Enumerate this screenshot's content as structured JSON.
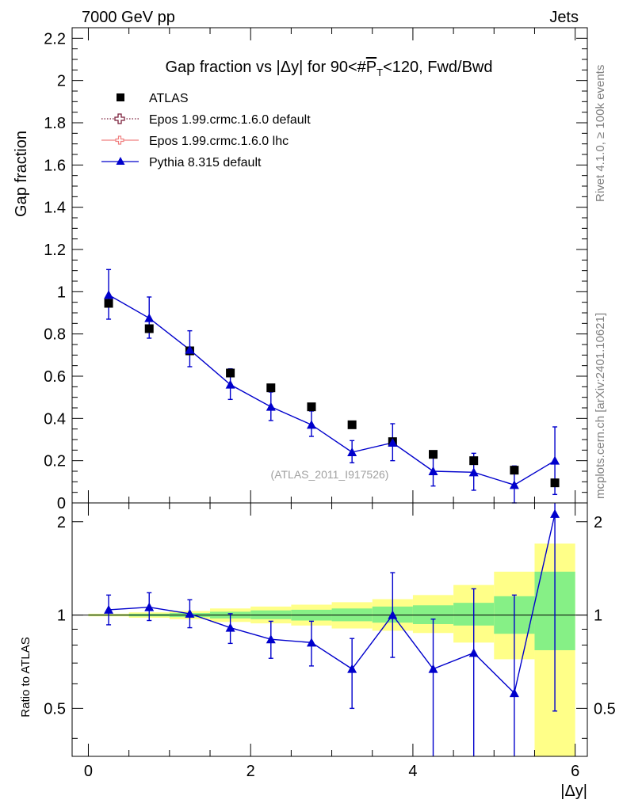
{
  "header": {
    "left_label": "7000 GeV pp",
    "right_label": "Jets",
    "side_label_top": "Rivet 4.1.0, ≥ 100k events",
    "side_label_bottom": "mcplots.cern.ch [arXiv:2401.10621]"
  },
  "chart_data": [
    {
      "type": "scatter",
      "title": "Gap fraction vs |Δy| for 90<#P̅T<120, Fwd/Bwd",
      "title_parts": {
        "pre": "Gap fraction vs |Δy| for 90<#",
        "p": "P",
        "sub": "T",
        "post": "<120, Fwd/Bwd"
      },
      "ylabel": "Gap fraction",
      "xlabel": "|Δy|",
      "watermark": "(ATLAS_2011_I917526)",
      "xlim": [
        -0.2,
        6.15
      ],
      "ylim": [
        0,
        2.25
      ],
      "yticks": [
        0,
        0.2,
        0.4,
        0.6,
        0.8,
        1,
        1.2,
        1.4,
        1.6,
        1.8,
        2,
        2.2
      ],
      "ytick_labels": [
        "0",
        "0.2",
        "0.4",
        "0.6",
        "0.8",
        "1",
        "1.2",
        "1.4",
        "1.6",
        "1.8",
        "2",
        "2.2"
      ],
      "legend": [
        {
          "name": "ATLAS",
          "color": "#000000",
          "style": "square"
        },
        {
          "name": "Epos 1.99.crmc.1.6.0 default",
          "color": "#7b1f3a",
          "style": "dotted-cross"
        },
        {
          "name": "Epos 1.99.crmc.1.6.0 lhc",
          "color": "#f08080",
          "style": "line-cross"
        },
        {
          "name": "Pythia 8.315 default",
          "color": "#0000cc",
          "style": "triangle"
        }
      ],
      "x": [
        0.25,
        0.75,
        1.25,
        1.75,
        2.25,
        2.75,
        3.25,
        3.75,
        4.25,
        4.75,
        5.25,
        5.75
      ],
      "series": [
        {
          "name": "ATLAS",
          "values": [
            0.945,
            0.825,
            0.72,
            0.615,
            0.545,
            0.455,
            0.37,
            0.29,
            0.23,
            0.2,
            0.155,
            0.095
          ]
        },
        {
          "name": "Pythia 8.315 default",
          "values": [
            0.985,
            0.875,
            0.725,
            0.56,
            0.455,
            0.37,
            0.24,
            0.285,
            0.15,
            0.145,
            0.085,
            0.2
          ],
          "err_low": [
            0.115,
            0.095,
            0.08,
            0.07,
            0.065,
            0.055,
            0.05,
            0.085,
            0.07,
            0.085,
            0.085,
            0.16
          ],
          "err_high": [
            0.12,
            0.1,
            0.09,
            0.075,
            0.07,
            0.065,
            0.055,
            0.09,
            0.08,
            0.09,
            0.09,
            0.16
          ]
        }
      ]
    },
    {
      "type": "scatter",
      "title": "",
      "ylabel": "Ratio to ATLAS",
      "xlabel": "|Δy|",
      "xlim": [
        -0.2,
        6.15
      ],
      "ylim": [
        0.35,
        2.3
      ],
      "xticks": [
        0,
        2,
        4,
        6
      ],
      "xtick_labels": [
        "0",
        "2",
        "4",
        "6"
      ],
      "yticks": [
        0.5,
        1,
        2
      ],
      "ytick_labels": [
        "0.5",
        "1",
        "2"
      ],
      "bands": {
        "x_edges": [
          0.0,
          0.5,
          1.0,
          1.5,
          2.0,
          2.5,
          3.0,
          3.5,
          4.0,
          4.5,
          5.0,
          5.5,
          6.0
        ],
        "green_low": [
          0.995,
          0.99,
          0.985,
          0.975,
          0.97,
          0.96,
          0.955,
          0.945,
          0.935,
          0.925,
          0.87,
          0.77
        ],
        "green_high": [
          1.005,
          1.01,
          1.015,
          1.025,
          1.035,
          1.04,
          1.05,
          1.065,
          1.075,
          1.095,
          1.15,
          1.38
        ],
        "yellow_low": [
          0.99,
          0.98,
          0.97,
          0.95,
          0.94,
          0.925,
          0.905,
          0.89,
          0.875,
          0.815,
          0.72,
          0.35
        ],
        "yellow_high": [
          1.01,
          1.02,
          1.03,
          1.05,
          1.065,
          1.08,
          1.1,
          1.125,
          1.16,
          1.25,
          1.38,
          1.7
        ],
        "green_color": "#86f086",
        "yellow_color": "#ffff88"
      },
      "x": [
        0.25,
        0.75,
        1.25,
        1.75,
        2.25,
        2.75,
        3.25,
        3.75,
        4.25,
        4.75,
        5.25,
        5.75
      ],
      "series": [
        {
          "name": "Pythia 8.315 default",
          "values": [
            1.04,
            1.06,
            1.01,
            0.91,
            0.835,
            0.815,
            0.67,
            1.0,
            0.67,
            0.755,
            0.56,
            2.12
          ],
          "err_low": [
            0.11,
            0.1,
            0.1,
            0.1,
            0.11,
            0.13,
            0.17,
            0.27,
            0.32,
            0.44,
            0.45,
            1.63
          ],
          "err_high": [
            0.12,
            0.12,
            0.11,
            0.1,
            0.12,
            0.14,
            0.17,
            0.37,
            0.3,
            0.46,
            0.6,
            0.2
          ]
        }
      ]
    }
  ],
  "colors": {
    "pythia": "#0000cc",
    "atlas": "#000000",
    "epos_default": "#7b1f3a",
    "epos_lhc": "#f08080"
  }
}
